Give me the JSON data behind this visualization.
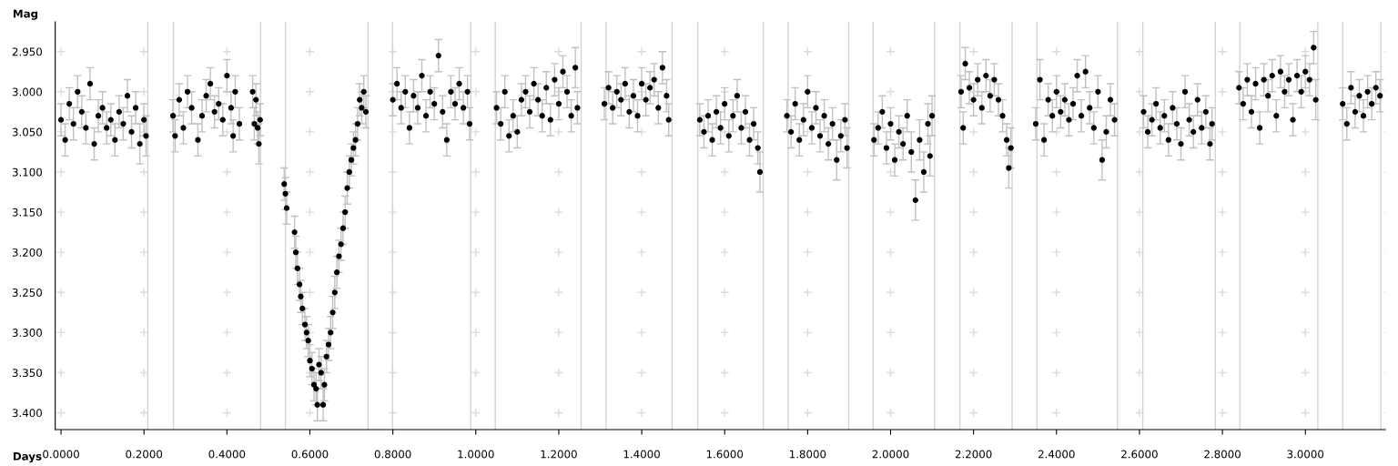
{
  "chart_data": {
    "type": "scatter",
    "xlabel": "Days",
    "ylabel": "Mag",
    "xlim": [
      -0.014,
      3.193
    ],
    "ylim": [
      3.421,
      2.913
    ],
    "xticks": [
      {
        "value": 0,
        "label": "0.0000"
      },
      {
        "value": 0.2,
        "label": "0.2000"
      },
      {
        "value": 0.4,
        "label": "0.4000"
      },
      {
        "value": 0.6,
        "label": "0.6000"
      },
      {
        "value": 0.8,
        "label": "0.8000"
      },
      {
        "value": 1.0,
        "label": "1.0000"
      },
      {
        "value": 1.2,
        "label": "1.2000"
      },
      {
        "value": 1.4,
        "label": "1.4000"
      },
      {
        "value": 1.6,
        "label": "1.6000"
      },
      {
        "value": 1.8,
        "label": "1.8000"
      },
      {
        "value": 2.0,
        "label": "2.0000"
      },
      {
        "value": 2.2,
        "label": "2.2000"
      },
      {
        "value": 2.4,
        "label": "2.4000"
      },
      {
        "value": 2.6,
        "label": "2.6000"
      },
      {
        "value": 2.8,
        "label": "2.8000"
      },
      {
        "value": 3.0,
        "label": "3.0000"
      }
    ],
    "yticks": [
      {
        "value": 2.95,
        "label": "2.950"
      },
      {
        "value": 3.0,
        "label": "3.000"
      },
      {
        "value": 3.05,
        "label": "3.050"
      },
      {
        "value": 3.1,
        "label": "3.100"
      },
      {
        "value": 3.15,
        "label": "3.150"
      },
      {
        "value": 3.2,
        "label": "3.200"
      },
      {
        "value": 3.25,
        "label": "3.250"
      },
      {
        "value": 3.3,
        "label": "3.300"
      },
      {
        "value": 3.35,
        "label": "3.350"
      },
      {
        "value": 3.4,
        "label": "3.400"
      }
    ],
    "grid": true,
    "marker": "circle",
    "series": [
      {
        "color": "#000000",
        "x": [
          0.0,
          0.01,
          0.02,
          0.03,
          0.04,
          0.05,
          0.06,
          0.07,
          0.08,
          0.09,
          0.1,
          0.11,
          0.12,
          0.13,
          0.14,
          0.15,
          0.16,
          0.17,
          0.18,
          0.19,
          0.2,
          0.205
        ],
        "values": [
          3.035,
          3.06,
          3.015,
          3.04,
          3.0,
          3.025,
          3.045,
          2.99,
          3.065,
          3.03,
          3.02,
          3.045,
          3.035,
          3.06,
          3.025,
          3.04,
          3.005,
          3.05,
          3.02,
          3.065,
          3.035,
          3.055
        ],
        "errors": [
          0.02,
          0.02,
          0.02,
          0.02,
          0.02,
          0.02,
          0.02,
          0.02,
          0.02,
          0.02,
          0.02,
          0.02,
          0.02,
          0.02,
          0.02,
          0.02,
          0.02,
          0.02,
          0.02,
          0.025,
          0.02,
          0.025
        ]
      },
      {
        "color": "#000000",
        "x": [
          0.27,
          0.275,
          0.285,
          0.295,
          0.305,
          0.315,
          0.33,
          0.34,
          0.35,
          0.36,
          0.37,
          0.38,
          0.39,
          0.4,
          0.41,
          0.415,
          0.42,
          0.43
        ],
        "values": [
          3.03,
          3.055,
          3.01,
          3.045,
          3.0,
          3.02,
          3.06,
          3.03,
          3.005,
          2.99,
          3.025,
          3.015,
          3.035,
          2.98,
          3.02,
          3.055,
          3.0,
          3.04
        ],
        "errors": [
          0.02,
          0.02,
          0.02,
          0.02,
          0.02,
          0.02,
          0.02,
          0.02,
          0.02,
          0.02,
          0.02,
          0.02,
          0.02,
          0.02,
          0.02,
          0.02,
          0.02,
          0.02
        ]
      },
      {
        "color": "#000000",
        "x": [
          0.462,
          0.466,
          0.47,
          0.474,
          0.477,
          0.48
        ],
        "values": [
          3.0,
          3.04,
          3.01,
          3.045,
          3.065,
          3.035
        ],
        "errors": [
          0.02,
          0.02,
          0.02,
          0.02,
          0.025,
          0.02
        ]
      },
      {
        "color": "#000000",
        "x": [
          0.538,
          0.541,
          0.544,
          0.563,
          0.566,
          0.57,
          0.575,
          0.578,
          0.582,
          0.588,
          0.592,
          0.596,
          0.6,
          0.605,
          0.61,
          0.615,
          0.618,
          0.622,
          0.627,
          0.632,
          0.635,
          0.64,
          0.645,
          0.65,
          0.655,
          0.66,
          0.665,
          0.67,
          0.675,
          0.68,
          0.685,
          0.69,
          0.695,
          0.7,
          0.705,
          0.71,
          0.715,
          0.72,
          0.725,
          0.73,
          0.735
        ],
        "values": [
          3.115,
          3.127,
          3.145,
          3.175,
          3.2,
          3.22,
          3.24,
          3.255,
          3.27,
          3.29,
          3.3,
          3.31,
          3.335,
          3.345,
          3.365,
          3.37,
          3.39,
          3.34,
          3.35,
          3.39,
          3.365,
          3.33,
          3.315,
          3.3,
          3.275,
          3.25,
          3.225,
          3.205,
          3.19,
          3.17,
          3.15,
          3.12,
          3.1,
          3.085,
          3.07,
          3.06,
          3.04,
          3.01,
          3.02,
          3.0,
          3.025
        ],
        "errors": [
          0.02,
          0.02,
          0.02,
          0.02,
          0.02,
          0.02,
          0.02,
          0.02,
          0.02,
          0.02,
          0.02,
          0.02,
          0.02,
          0.02,
          0.02,
          0.02,
          0.02,
          0.02,
          0.02,
          0.02,
          0.02,
          0.02,
          0.02,
          0.02,
          0.02,
          0.02,
          0.02,
          0.02,
          0.02,
          0.02,
          0.02,
          0.02,
          0.02,
          0.02,
          0.02,
          0.02,
          0.02,
          0.02,
          0.02,
          0.02,
          0.02
        ]
      },
      {
        "color": "#000000",
        "x": [
          0.8,
          0.81,
          0.82,
          0.83,
          0.84,
          0.85,
          0.86,
          0.87,
          0.88,
          0.89,
          0.9,
          0.91,
          0.92,
          0.93,
          0.94,
          0.95,
          0.96,
          0.97,
          0.98,
          0.985
        ],
        "values": [
          3.01,
          2.99,
          3.02,
          3.0,
          3.045,
          3.005,
          3.02,
          2.98,
          3.03,
          3.0,
          3.015,
          2.955,
          3.025,
          3.06,
          3.0,
          3.015,
          2.99,
          3.02,
          3.0,
          3.04
        ],
        "errors": [
          0.02,
          0.02,
          0.02,
          0.02,
          0.02,
          0.02,
          0.02,
          0.02,
          0.02,
          0.02,
          0.02,
          0.02,
          0.02,
          0.02,
          0.02,
          0.02,
          0.02,
          0.02,
          0.02,
          0.02
        ]
      },
      {
        "color": "#000000",
        "x": [
          1.05,
          1.06,
          1.07,
          1.08,
          1.09,
          1.1,
          1.11,
          1.12,
          1.13,
          1.14,
          1.15,
          1.16,
          1.17,
          1.18,
          1.19,
          1.2,
          1.21,
          1.22,
          1.23,
          1.24,
          1.245
        ],
        "values": [
          3.02,
          3.04,
          3.0,
          3.055,
          3.03,
          3.05,
          3.01,
          3.0,
          3.025,
          2.99,
          3.01,
          3.03,
          2.995,
          3.035,
          2.985,
          3.015,
          2.975,
          3.0,
          3.03,
          2.97,
          3.02
        ],
        "errors": [
          0.02,
          0.02,
          0.02,
          0.02,
          0.02,
          0.02,
          0.02,
          0.02,
          0.02,
          0.02,
          0.02,
          0.02,
          0.02,
          0.02,
          0.02,
          0.02,
          0.02,
          0.02,
          0.02,
          0.025,
          0.02
        ]
      },
      {
        "color": "#000000",
        "x": [
          1.31,
          1.32,
          1.33,
          1.34,
          1.35,
          1.36,
          1.37,
          1.38,
          1.39,
          1.4,
          1.41,
          1.42,
          1.43,
          1.44,
          1.45,
          1.46,
          1.465
        ],
        "values": [
          3.015,
          2.995,
          3.02,
          3.0,
          3.01,
          2.99,
          3.025,
          3.005,
          3.03,
          2.99,
          3.01,
          2.995,
          2.985,
          3.02,
          2.97,
          3.005,
          3.035
        ],
        "errors": [
          0.02,
          0.02,
          0.02,
          0.02,
          0.02,
          0.02,
          0.02,
          0.02,
          0.02,
          0.02,
          0.02,
          0.02,
          0.02,
          0.02,
          0.02,
          0.02,
          0.02
        ]
      },
      {
        "color": "#000000",
        "x": [
          1.54,
          1.55,
          1.56,
          1.57,
          1.58,
          1.59,
          1.6,
          1.61,
          1.62,
          1.63,
          1.64,
          1.65,
          1.66,
          1.67,
          1.68,
          1.685
        ],
        "values": [
          3.035,
          3.05,
          3.03,
          3.06,
          3.025,
          3.045,
          3.015,
          3.055,
          3.03,
          3.005,
          3.045,
          3.025,
          3.06,
          3.04,
          3.07,
          3.1
        ],
        "errors": [
          0.02,
          0.02,
          0.02,
          0.02,
          0.02,
          0.02,
          0.02,
          0.02,
          0.02,
          0.02,
          0.02,
          0.02,
          0.02,
          0.02,
          0.02,
          0.025
        ]
      },
      {
        "color": "#000000",
        "x": [
          1.75,
          1.76,
          1.77,
          1.78,
          1.79,
          1.8,
          1.81,
          1.82,
          1.83,
          1.84,
          1.85,
          1.86,
          1.87,
          1.88,
          1.89,
          1.895
        ],
        "values": [
          3.03,
          3.05,
          3.015,
          3.06,
          3.035,
          3.0,
          3.045,
          3.02,
          3.055,
          3.03,
          3.065,
          3.04,
          3.085,
          3.055,
          3.035,
          3.07
        ],
        "errors": [
          0.02,
          0.02,
          0.02,
          0.02,
          0.02,
          0.02,
          0.02,
          0.02,
          0.02,
          0.02,
          0.02,
          0.02,
          0.025,
          0.02,
          0.02,
          0.025
        ]
      },
      {
        "color": "#000000",
        "x": [
          1.96,
          1.97,
          1.98,
          1.99,
          2.0,
          2.01,
          2.02,
          2.03,
          2.04,
          2.05,
          2.06,
          2.07,
          2.08,
          2.09,
          2.095,
          2.1
        ],
        "values": [
          3.06,
          3.045,
          3.025,
          3.07,
          3.04,
          3.085,
          3.05,
          3.065,
          3.03,
          3.075,
          3.135,
          3.06,
          3.1,
          3.04,
          3.08,
          3.03
        ],
        "errors": [
          0.02,
          0.02,
          0.02,
          0.02,
          0.02,
          0.02,
          0.02,
          0.02,
          0.02,
          0.025,
          0.025,
          0.025,
          0.025,
          0.025,
          0.025,
          0.025
        ]
      },
      {
        "color": "#000000",
        "x": [
          2.17,
          2.175,
          2.18,
          2.19,
          2.2,
          2.21,
          2.22,
          2.23,
          2.24,
          2.25,
          2.26,
          2.27,
          2.28,
          2.285,
          2.29
        ],
        "values": [
          3.0,
          3.045,
          2.965,
          2.995,
          3.01,
          2.985,
          3.02,
          2.98,
          3.005,
          2.985,
          3.01,
          3.03,
          3.06,
          3.095,
          3.07
        ],
        "errors": [
          0.02,
          0.02,
          0.02,
          0.02,
          0.02,
          0.02,
          0.02,
          0.02,
          0.02,
          0.02,
          0.02,
          0.02,
          0.02,
          0.025,
          0.025
        ]
      },
      {
        "color": "#000000",
        "x": [
          2.35,
          2.36,
          2.37,
          2.38,
          2.39,
          2.4,
          2.41,
          2.42,
          2.43,
          2.44,
          2.45,
          2.46,
          2.47,
          2.48,
          2.49,
          2.5,
          2.51,
          2.52,
          2.53,
          2.54
        ],
        "values": [
          3.04,
          2.985,
          3.06,
          3.01,
          3.03,
          3.0,
          3.025,
          3.01,
          3.035,
          3.015,
          2.98,
          3.03,
          2.975,
          3.02,
          3.045,
          3.0,
          3.085,
          3.05,
          3.01,
          3.035
        ],
        "errors": [
          0.02,
          0.025,
          0.02,
          0.02,
          0.02,
          0.02,
          0.02,
          0.02,
          0.02,
          0.02,
          0.02,
          0.02,
          0.02,
          0.02,
          0.02,
          0.02,
          0.025,
          0.02,
          0.02,
          0.02
        ]
      },
      {
        "color": "#000000",
        "x": [
          2.61,
          2.62,
          2.63,
          2.64,
          2.65,
          2.66,
          2.67,
          2.68,
          2.69,
          2.7,
          2.71,
          2.72,
          2.73,
          2.74,
          2.75,
          2.76,
          2.77,
          2.775
        ],
        "values": [
          3.025,
          3.05,
          3.035,
          3.015,
          3.045,
          3.03,
          3.06,
          3.02,
          3.04,
          3.065,
          3.0,
          3.035,
          3.05,
          3.01,
          3.045,
          3.025,
          3.065,
          3.04
        ],
        "errors": [
          0.02,
          0.02,
          0.02,
          0.02,
          0.02,
          0.02,
          0.02,
          0.02,
          0.02,
          0.02,
          0.02,
          0.02,
          0.02,
          0.02,
          0.02,
          0.02,
          0.02,
          0.02
        ]
      },
      {
        "color": "#000000",
        "x": [
          2.84,
          2.85,
          2.86,
          2.87,
          2.88,
          2.89,
          2.9,
          2.91,
          2.92,
          2.93,
          2.94,
          2.95,
          2.96,
          2.97,
          2.98,
          2.99,
          3.0,
          3.01,
          3.02,
          3.025
        ],
        "values": [
          2.995,
          3.015,
          2.985,
          3.025,
          2.99,
          3.045,
          2.985,
          3.005,
          2.98,
          3.03,
          2.975,
          3.0,
          2.985,
          3.035,
          2.98,
          3.0,
          2.975,
          2.985,
          2.945,
          3.01
        ],
        "errors": [
          0.02,
          0.02,
          0.02,
          0.02,
          0.02,
          0.02,
          0.02,
          0.02,
          0.02,
          0.02,
          0.02,
          0.02,
          0.02,
          0.02,
          0.02,
          0.02,
          0.02,
          0.02,
          0.02,
          0.025
        ]
      },
      {
        "color": "#000000",
        "x": [
          3.09,
          3.1,
          3.11,
          3.12,
          3.13,
          3.14,
          3.15,
          3.16,
          3.17,
          3.18
        ],
        "values": [
          3.015,
          3.04,
          2.995,
          3.025,
          3.005,
          3.03,
          3.0,
          3.015,
          2.995,
          3.005
        ],
        "errors": [
          0.02,
          0.02,
          0.02,
          0.02,
          0.02,
          0.02,
          0.02,
          0.02,
          0.02,
          0.02
        ]
      }
    ],
    "ref_lines": [
      {
        "axis": "x",
        "value": 0.209,
        "color": "#d3d3d3"
      },
      {
        "axis": "x",
        "value": 0.271,
        "color": "#d3d3d3"
      },
      {
        "axis": "x",
        "value": 0.481,
        "color": "#d3d3d3"
      },
      {
        "axis": "x",
        "value": 0.541,
        "color": "#d3d3d3"
      },
      {
        "axis": "x",
        "value": 0.74,
        "color": "#d3d3d3"
      },
      {
        "axis": "x",
        "value": 0.799,
        "color": "#d3d3d3"
      },
      {
        "axis": "x",
        "value": 0.988,
        "color": "#d3d3d3"
      },
      {
        "axis": "x",
        "value": 1.047,
        "color": "#d3d3d3"
      },
      {
        "axis": "x",
        "value": 1.254,
        "color": "#d3d3d3"
      },
      {
        "axis": "x",
        "value": 1.314,
        "color": "#d3d3d3"
      },
      {
        "axis": "x",
        "value": 1.473,
        "color": "#d3d3d3"
      },
      {
        "axis": "x",
        "value": 1.535,
        "color": "#d3d3d3"
      },
      {
        "axis": "x",
        "value": 1.693,
        "color": "#d3d3d3"
      },
      {
        "axis": "x",
        "value": 1.753,
        "color": "#d3d3d3"
      },
      {
        "axis": "x",
        "value": 1.899,
        "color": "#d3d3d3"
      },
      {
        "axis": "x",
        "value": 1.958,
        "color": "#d3d3d3"
      },
      {
        "axis": "x",
        "value": 2.106,
        "color": "#d3d3d3"
      },
      {
        "axis": "x",
        "value": 2.167,
        "color": "#d3d3d3"
      },
      {
        "axis": "x",
        "value": 2.293,
        "color": "#d3d3d3"
      },
      {
        "axis": "x",
        "value": 2.353,
        "color": "#d3d3d3"
      },
      {
        "axis": "x",
        "value": 2.547,
        "color": "#d3d3d3"
      },
      {
        "axis": "x",
        "value": 2.608,
        "color": "#d3d3d3"
      },
      {
        "axis": "x",
        "value": 2.783,
        "color": "#d3d3d3"
      },
      {
        "axis": "x",
        "value": 2.842,
        "color": "#d3d3d3"
      },
      {
        "axis": "x",
        "value": 3.03,
        "color": "#d3d3d3"
      },
      {
        "axis": "x",
        "value": 3.09,
        "color": "#d3d3d3"
      },
      {
        "axis": "x",
        "value": 3.182,
        "color": "#d3d3d3"
      }
    ]
  }
}
